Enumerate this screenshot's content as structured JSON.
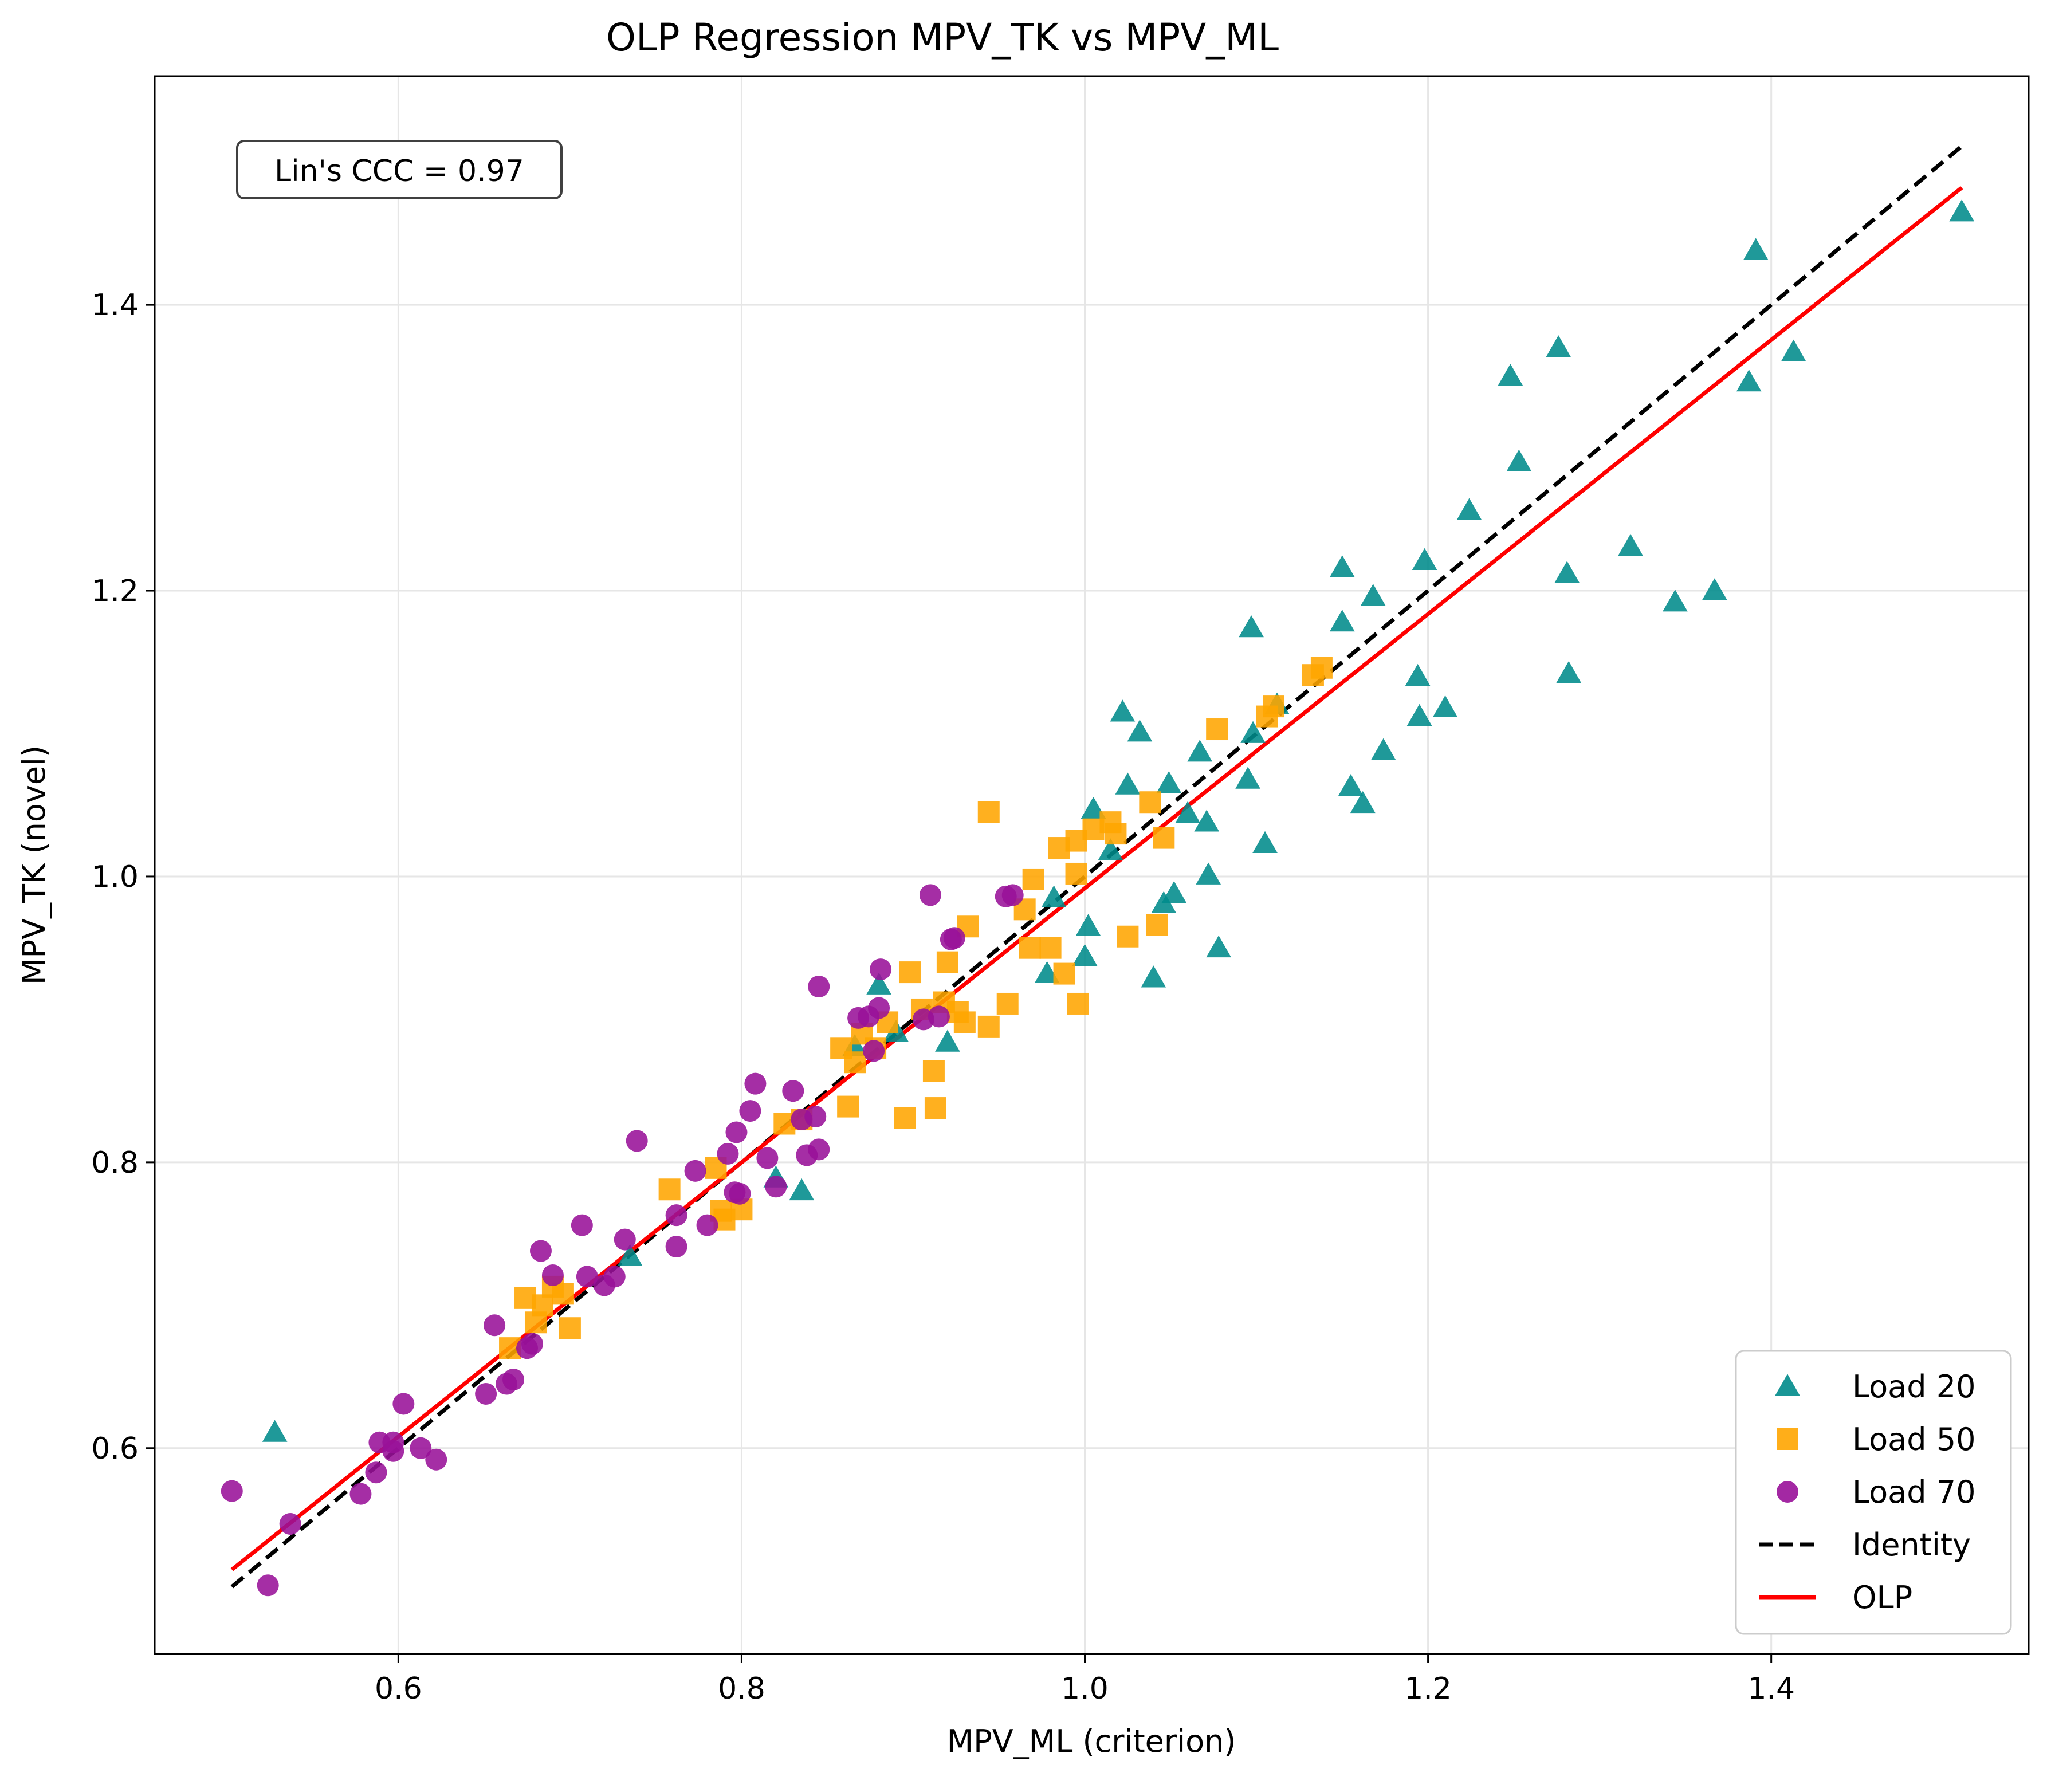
{
  "chart_data": {
    "type": "scatter",
    "title": "OLP Regression MPV_TK vs MPV_ML",
    "xlabel": "MPV_ML (criterion)",
    "ylabel": "MPV_TK (novel)",
    "xlim": [
      0.458,
      1.55
    ],
    "ylim": [
      0.456,
      1.56
    ],
    "xticks": [
      0.6,
      0.8,
      1.0,
      1.2,
      1.4
    ],
    "xtick_labels": [
      "0.6",
      "0.8",
      "1.0",
      "1.2",
      "1.4"
    ],
    "yticks": [
      0.6,
      0.8,
      1.0,
      1.2,
      1.4
    ],
    "ytick_labels": [
      "0.6",
      "0.8",
      "1.0",
      "1.2",
      "1.4"
    ],
    "grid": true,
    "legend_position": "bottom-right",
    "annotation": "Lin's CCC = 0.97",
    "series": [
      {
        "name": "Load 20",
        "marker": "triangle",
        "color": "#008b8b",
        "points": [
          [
            0.528,
            0.611
          ],
          [
            0.735,
            0.734
          ],
          [
            0.82,
            0.789
          ],
          [
            0.835,
            0.78
          ],
          [
            0.866,
            0.881
          ],
          [
            0.88,
            0.924
          ],
          [
            0.89,
            0.891
          ],
          [
            0.92,
            0.884
          ],
          [
            0.978,
            0.932
          ],
          [
            0.982,
            0.985
          ],
          [
            1.0,
            0.944
          ],
          [
            1.002,
            0.965
          ],
          [
            1.005,
            1.047
          ],
          [
            1.015,
            1.018
          ],
          [
            1.022,
            1.115
          ],
          [
            1.025,
            1.064
          ],
          [
            1.032,
            1.101
          ],
          [
            1.04,
            0.929
          ],
          [
            1.046,
            0.981
          ],
          [
            1.049,
            1.065
          ],
          [
            1.052,
            0.988
          ],
          [
            1.06,
            1.044
          ],
          [
            1.067,
            1.087
          ],
          [
            1.071,
            1.038
          ],
          [
            1.072,
            1.001
          ],
          [
            1.078,
            0.95
          ],
          [
            1.095,
            1.068
          ],
          [
            1.097,
            1.174
          ],
          [
            1.098,
            1.1
          ],
          [
            1.105,
            1.023
          ],
          [
            1.112,
            1.12
          ],
          [
            1.15,
            1.216
          ],
          [
            1.15,
            1.178
          ],
          [
            1.155,
            1.063
          ],
          [
            1.162,
            1.051
          ],
          [
            1.168,
            1.196
          ],
          [
            1.174,
            1.088
          ],
          [
            1.194,
            1.14
          ],
          [
            1.195,
            1.112
          ],
          [
            1.198,
            1.221
          ],
          [
            1.21,
            1.118
          ],
          [
            1.224,
            1.256
          ],
          [
            1.248,
            1.35
          ],
          [
            1.253,
            1.29
          ],
          [
            1.276,
            1.37
          ],
          [
            1.281,
            1.212
          ],
          [
            1.282,
            1.142
          ],
          [
            1.318,
            1.231
          ],
          [
            1.344,
            1.192
          ],
          [
            1.367,
            1.2
          ],
          [
            1.387,
            1.346
          ],
          [
            1.391,
            1.438
          ],
          [
            1.413,
            1.367
          ],
          [
            1.511,
            1.465
          ]
        ]
      },
      {
        "name": "Load 50",
        "marker": "square",
        "color": "#ffa500",
        "points": [
          [
            0.665,
            0.67
          ],
          [
            0.674,
            0.705
          ],
          [
            0.68,
            0.688
          ],
          [
            0.684,
            0.7
          ],
          [
            0.69,
            0.713
          ],
          [
            0.696,
            0.708
          ],
          [
            0.7,
            0.684
          ],
          [
            0.758,
            0.781
          ],
          [
            0.785,
            0.796
          ],
          [
            0.788,
            0.766
          ],
          [
            0.79,
            0.76
          ],
          [
            0.8,
            0.767
          ],
          [
            0.825,
            0.827
          ],
          [
            0.835,
            0.83
          ],
          [
            0.858,
            0.88
          ],
          [
            0.862,
            0.839
          ],
          [
            0.866,
            0.87
          ],
          [
            0.87,
            0.89
          ],
          [
            0.878,
            0.88
          ],
          [
            0.885,
            0.898
          ],
          [
            0.895,
            0.831
          ],
          [
            0.898,
            0.933
          ],
          [
            0.905,
            0.907
          ],
          [
            0.912,
            0.864
          ],
          [
            0.913,
            0.838
          ],
          [
            0.918,
            0.912
          ],
          [
            0.92,
            0.94
          ],
          [
            0.926,
            0.905
          ],
          [
            0.93,
            0.898
          ],
          [
            0.932,
            0.965
          ],
          [
            0.944,
            0.895
          ],
          [
            0.944,
            1.045
          ],
          [
            0.955,
            0.911
          ],
          [
            0.965,
            0.977
          ],
          [
            0.968,
            0.95
          ],
          [
            0.97,
            0.998
          ],
          [
            0.98,
            0.95
          ],
          [
            0.985,
            1.02
          ],
          [
            0.988,
            0.932
          ],
          [
            0.995,
            1.025
          ],
          [
            0.995,
            1.002
          ],
          [
            0.996,
            0.911
          ],
          [
            1.005,
            1.033
          ],
          [
            1.015,
            1.038
          ],
          [
            1.018,
            1.03
          ],
          [
            1.025,
            0.958
          ],
          [
            1.038,
            1.052
          ],
          [
            1.042,
            0.966
          ],
          [
            1.046,
            1.027
          ],
          [
            1.077,
            1.103
          ],
          [
            1.106,
            1.112
          ],
          [
            1.11,
            1.119
          ],
          [
            1.133,
            1.141
          ],
          [
            1.138,
            1.146
          ]
        ]
      },
      {
        "name": "Load 70",
        "marker": "circle",
        "color": "#991199",
        "points": [
          [
            0.503,
            0.57
          ],
          [
            0.524,
            0.504
          ],
          [
            0.537,
            0.547
          ],
          [
            0.578,
            0.568
          ],
          [
            0.587,
            0.583
          ],
          [
            0.589,
            0.604
          ],
          [
            0.597,
            0.598
          ],
          [
            0.597,
            0.604
          ],
          [
            0.603,
            0.631
          ],
          [
            0.613,
            0.6
          ],
          [
            0.622,
            0.592
          ],
          [
            0.651,
            0.638
          ],
          [
            0.656,
            0.686
          ],
          [
            0.663,
            0.645
          ],
          [
            0.667,
            0.648
          ],
          [
            0.675,
            0.67
          ],
          [
            0.678,
            0.673
          ],
          [
            0.683,
            0.738
          ],
          [
            0.69,
            0.721
          ],
          [
            0.707,
            0.756
          ],
          [
            0.71,
            0.72
          ],
          [
            0.72,
            0.714
          ],
          [
            0.726,
            0.72
          ],
          [
            0.732,
            0.746
          ],
          [
            0.739,
            0.815
          ],
          [
            0.762,
            0.763
          ],
          [
            0.762,
            0.741
          ],
          [
            0.773,
            0.794
          ],
          [
            0.78,
            0.756
          ],
          [
            0.792,
            0.806
          ],
          [
            0.796,
            0.779
          ],
          [
            0.797,
            0.821
          ],
          [
            0.799,
            0.778
          ],
          [
            0.805,
            0.836
          ],
          [
            0.808,
            0.855
          ],
          [
            0.815,
            0.803
          ],
          [
            0.82,
            0.783
          ],
          [
            0.83,
            0.85
          ],
          [
            0.835,
            0.83
          ],
          [
            0.838,
            0.805
          ],
          [
            0.843,
            0.832
          ],
          [
            0.845,
            0.923
          ],
          [
            0.845,
            0.809
          ],
          [
            0.868,
            0.901
          ],
          [
            0.874,
            0.902
          ],
          [
            0.877,
            0.878
          ],
          [
            0.88,
            0.908
          ],
          [
            0.881,
            0.935
          ],
          [
            0.906,
            0.9
          ],
          [
            0.91,
            0.987
          ],
          [
            0.915,
            0.902
          ],
          [
            0.922,
            0.956
          ],
          [
            0.924,
            0.957
          ],
          [
            0.954,
            0.986
          ],
          [
            0.958,
            0.987
          ]
        ]
      }
    ],
    "lines": [
      {
        "name": "Identity",
        "style": "dashed",
        "color": "#000000",
        "x": [
          0.503,
          1.511
        ],
        "y": [
          0.503,
          1.511
        ]
      },
      {
        "name": "OLP",
        "style": "solid",
        "color": "#ff0000",
        "x": [
          0.503,
          1.511
        ],
        "y": [
          0.515,
          1.482
        ]
      }
    ],
    "legend": [
      "Load 20",
      "Load 50",
      "Load 70",
      "Identity",
      "OLP"
    ]
  }
}
